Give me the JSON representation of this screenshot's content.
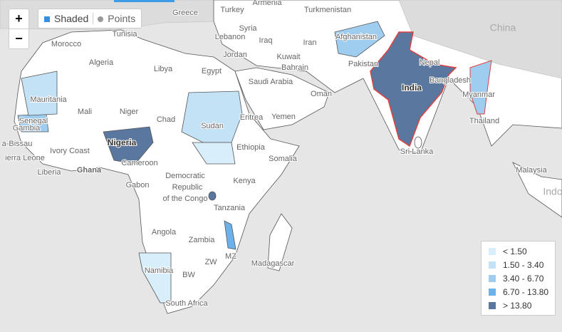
{
  "controls": {
    "zoom_in": "+",
    "zoom_out": "−",
    "view_options": [
      "Shaded",
      "Points"
    ]
  },
  "map": {
    "labels": [
      "Greece",
      "Turkey",
      "Armenia",
      "Turkmenistan",
      "China",
      "Tunisia",
      "Syria",
      "Lebanon",
      "Iraq",
      "Iran",
      "Afghanistan",
      "Morocco",
      "Jordan",
      "Kuwait",
      "Bahrain",
      "Pakistan",
      "Nepal",
      "Algeria",
      "Libya",
      "Egypt",
      "Saudi Arabia",
      "Oman",
      "India",
      "Bangladesh",
      "Myanmar",
      "Mauritania",
      "Mali",
      "Niger",
      "Chad",
      "Sudan",
      "Eritrea",
      "Yemen",
      "Thailand",
      "Senegal",
      "Gambia",
      "Nigeria",
      "Ethiopia",
      "a-Bissau",
      "ierra Leone",
      "Ivory Coast",
      "Sri Lanka",
      "Somalia",
      "Liberia",
      "Ghana",
      "Cameroon",
      "Malaysia",
      "Democratic",
      "Republic",
      "of the Congo",
      "Kenya",
      "Gabon",
      "Indo",
      "Tanzania",
      "Angola",
      "Zambia",
      "MZ",
      "Madagascar",
      "ZW",
      "Namibia",
      "BW",
      "South Africa"
    ]
  },
  "legend": {
    "items": [
      {
        "label": "< 1.50",
        "color": "#d9eefb"
      },
      {
        "label": "1.50 - 3.40",
        "color": "#c4e2f6"
      },
      {
        "label": "3.40 - 6.70",
        "color": "#9fcdf0"
      },
      {
        "label": "6.70 - 13.80",
        "color": "#6cb1ea"
      },
      {
        "label": "> 13.80",
        "color": "#5a789f"
      }
    ]
  }
}
